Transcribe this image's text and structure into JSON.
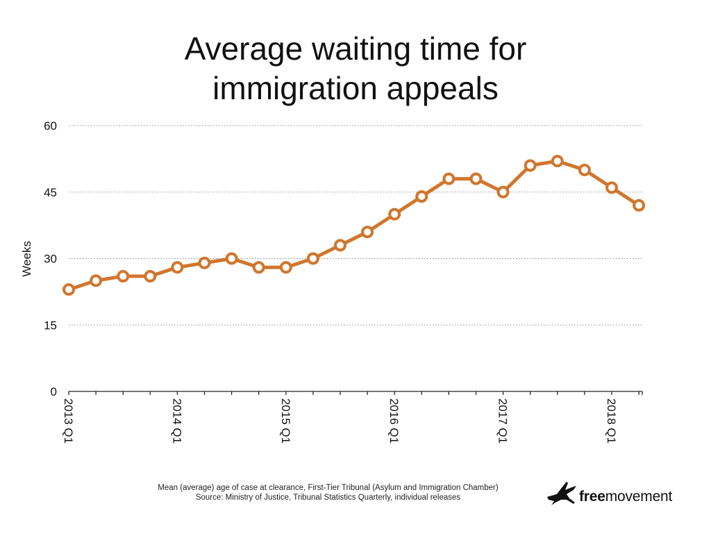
{
  "title_lines": [
    "Average waiting time for",
    "immigration appeals"
  ],
  "footnote": {
    "line1": "Mean (average) age of case at clearance, First-Tier Tribunal (Asylum and Immigration Chamber)",
    "line2": "Source: Ministry of Justice, Tribunal Statistics Quarterly, individual releases"
  },
  "logo": {
    "bold": "free",
    "rest": "movement",
    "icon": "bird-icon"
  },
  "colors": {
    "line": "#D0762D",
    "grid": "#888888",
    "axis": "#222222"
  },
  "chart_data": {
    "type": "line",
    "title": "Average waiting time for immigration appeals",
    "ylabel": "Weeks",
    "xlabel": "",
    "ylim": [
      0,
      60
    ],
    "yticks": [
      0,
      15,
      30,
      45,
      60
    ],
    "grid": true,
    "x": [
      "2013 Q1",
      "2013 Q2",
      "2013 Q3",
      "2013 Q4",
      "2014 Q1",
      "2014 Q2",
      "2014 Q3",
      "2014 Q4",
      "2015 Q1",
      "2015 Q2",
      "2015 Q3",
      "2015 Q4",
      "2016 Q1",
      "2016 Q2",
      "2016 Q3",
      "2016 Q4",
      "2017 Q1",
      "2017 Q2",
      "2017 Q3",
      "2017 Q4",
      "2018 Q1",
      "2018 Q2"
    ],
    "x_tick_labels": [
      "2013 Q1",
      "2014 Q1",
      "2015 Q1",
      "2016 Q1",
      "2017 Q1",
      "2018 Q1"
    ],
    "series": [
      {
        "values": [
          23,
          25,
          26,
          26,
          28,
          29,
          30,
          28,
          28,
          30,
          33,
          36,
          40,
          44,
          48,
          48,
          45,
          51,
          52,
          50,
          46,
          42
        ]
      }
    ]
  }
}
